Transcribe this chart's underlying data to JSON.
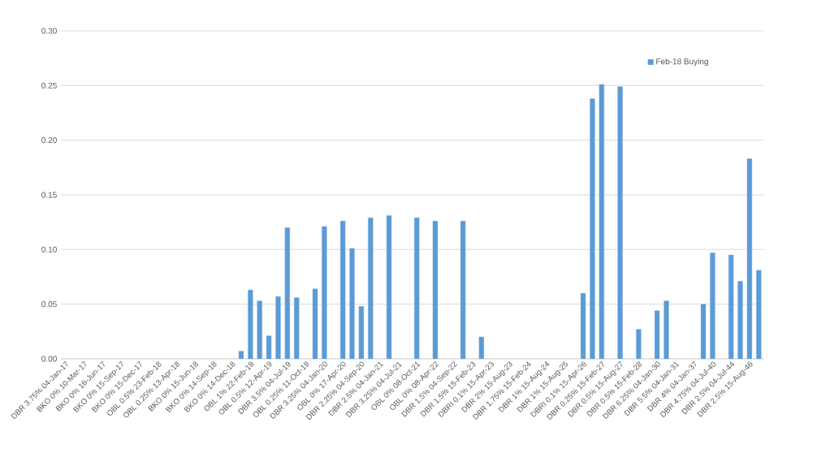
{
  "chart_data": {
    "type": "bar",
    "categories": [
      "DBR 3.75% 04-Jan-17",
      null,
      "BKO 0% 10-Mar-17",
      null,
      "BKO 0% 16-Jun-17",
      null,
      "BKO 0% 15-Sep-17",
      null,
      "BKO 0% 15-Dec-17",
      null,
      "OBL 0.5% 23-Feb-18",
      null,
      "OBL 0.25% 13-Apr-18",
      null,
      "BKO 0% 15-Jun-18",
      null,
      "BKO 0% 14-Sep-18",
      null,
      "BKO 0% 14-Dec-18",
      null,
      "OBL 1% 22-Feb-19",
      null,
      "OBL 0.5% 12-Apr-19",
      null,
      "DBR 3.5% 04-Jul-19",
      null,
      "OBL 0.25% 11-Oct-19",
      null,
      "DBR 3.25% 04-Jan-20",
      null,
      "OBL 0% 17-Apr-20",
      null,
      "DBR 2.25% 04-Sep-20",
      null,
      "DBR 2.5% 04-Jan-21",
      null,
      "DBR 3.25% 04-Jul-21",
      null,
      "OBL 0% 08-Oct-21",
      null,
      "OBL 0% 08-Apr-22",
      null,
      "DBR 1.5% 04-Sep-22",
      null,
      "DBR 1.5% 15-Feb-23",
      null,
      "DBRI 0.1% 15-Apr-23",
      null,
      "DBR 2% 15-Aug-23",
      null,
      "DBR 1.75% 15-Feb-24",
      null,
      "DBR 1% 15-Aug-24",
      null,
      "DBR 1% 15-Aug-25",
      null,
      "DBRI 0.1% 15-Apr-26",
      null,
      "DBR 0.25% 15-Feb-27",
      null,
      "DBR 0.5% 15-Aug-27",
      null,
      "DBR 0.5% 15-Feb-28",
      null,
      "DBR 6.25% 04-Jan-30",
      null,
      "DBR 5.5% 04-Jan-31",
      null,
      "DBR 4% 04-Jan-37",
      null,
      "DBR 4.75% 04-Jul-40",
      null,
      "DBR 2.5% 04-Jul-44",
      null,
      "DBR 2.5% 15-Aug-46",
      null
    ],
    "series": [
      {
        "name": "Feb-18 Buying",
        "color": "#5b9bd5",
        "values": [
          null,
          null,
          null,
          null,
          null,
          null,
          null,
          null,
          null,
          null,
          null,
          null,
          null,
          null,
          null,
          null,
          null,
          null,
          null,
          0.007,
          0.063,
          0.053,
          0.021,
          0.057,
          0.12,
          0.056,
          null,
          0.064,
          0.121,
          null,
          0.126,
          0.101,
          0.048,
          0.129,
          null,
          0.131,
          null,
          null,
          0.129,
          null,
          0.126,
          null,
          null,
          0.126,
          null,
          0.02,
          null,
          null,
          null,
          null,
          null,
          null,
          null,
          null,
          null,
          null,
          0.06,
          0.238,
          0.251,
          null,
          0.249,
          null,
          0.027,
          null,
          0.044,
          0.053,
          null,
          null,
          null,
          0.05,
          0.097,
          null,
          0.095,
          0.071,
          0.183,
          0.081
        ]
      }
    ],
    "ylim": [
      0,
      0.3
    ],
    "yticks": [
      {
        "value": 0,
        "label": "0.00"
      },
      {
        "value": 0.05,
        "label": "0.05"
      },
      {
        "value": 0.1,
        "label": "0.10"
      },
      {
        "value": 0.15,
        "label": "0.15"
      },
      {
        "value": 0.2,
        "label": "0.20"
      },
      {
        "value": 0.25,
        "label": "0.25"
      },
      {
        "value": 0.3,
        "label": "0.30"
      }
    ],
    "grid": "y",
    "legend": "top right"
  }
}
